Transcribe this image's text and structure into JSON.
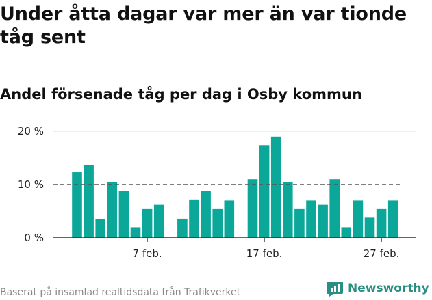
{
  "title": "Under åtta dagar var mer än var tionde tåg sent",
  "subtitle": "Andel försenade tåg per dag i Osby kommun",
  "footer": {
    "source": "Baserat på insamlad realtidsdata från Trafikverket",
    "brand": "Newsworthy"
  },
  "colors": {
    "bar": "#0ba89a",
    "reference_line": "#555555",
    "axis": "#333333",
    "grid": "#dddddd",
    "brand": "#2a8f83"
  },
  "chart_data": {
    "type": "bar",
    "title": "Andel försenade tåg per dag i Osby kommun",
    "xlabel": "",
    "ylabel": "",
    "y_unit": "%",
    "ylim": [
      0,
      20
    ],
    "y_ticks": [
      {
        "value": 0,
        "label": "0 %"
      },
      {
        "value": 10,
        "label": "10 %"
      },
      {
        "value": 20,
        "label": "20 %"
      }
    ],
    "x_ticks": [
      {
        "date": "2020-02-07",
        "label": "7 feb."
      },
      {
        "date": "2020-02-17",
        "label": "17 feb."
      },
      {
        "date": "2020-02-27",
        "label": "27 feb."
      }
    ],
    "reference_line": {
      "value": 10,
      "style": "dashed"
    },
    "grid": "horizontal",
    "legend": "none",
    "x": [
      "2020-02-01",
      "2020-02-02",
      "2020-02-03",
      "2020-02-04",
      "2020-02-05",
      "2020-02-06",
      "2020-02-07",
      "2020-02-08",
      "2020-02-09",
      "2020-02-10",
      "2020-02-11",
      "2020-02-12",
      "2020-02-13",
      "2020-02-14",
      "2020-02-15",
      "2020-02-16",
      "2020-02-17",
      "2020-02-18",
      "2020-02-19",
      "2020-02-20",
      "2020-02-21",
      "2020-02-22",
      "2020-02-23",
      "2020-02-24",
      "2020-02-25",
      "2020-02-26",
      "2020-02-27",
      "2020-02-28",
      "2020-02-29"
    ],
    "values": [
      12.3,
      13.7,
      3.5,
      10.5,
      8.8,
      2.0,
      5.4,
      6.2,
      null,
      3.6,
      7.2,
      8.8,
      5.4,
      7.0,
      null,
      11.0,
      17.4,
      19.0,
      10.5,
      5.4,
      7.0,
      6.2,
      11.0,
      2.0,
      7.0,
      3.8,
      5.4,
      7.0,
      null
    ]
  }
}
